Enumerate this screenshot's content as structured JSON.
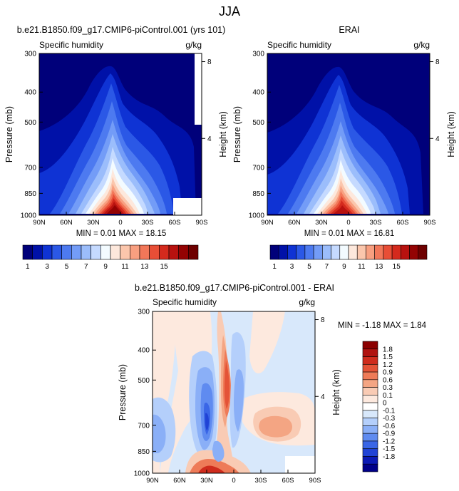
{
  "page_title": "JJA",
  "colors": {
    "blues_to_reds_18": [
      "#00007a",
      "#0011a8",
      "#0f33d4",
      "#2b58e6",
      "#4d7af0",
      "#739cf7",
      "#9bbdfb",
      "#c5daff",
      "#f3fbff",
      "#fde8dc",
      "#fbc6ac",
      "#f89f80",
      "#f27759",
      "#e84e36",
      "#d42a1d",
      "#b8120f",
      "#940303",
      "#6e0000"
    ],
    "diff_19": [
      "#000089",
      "#0b1ab5",
      "#2043d6",
      "#3a66e6",
      "#5f8bf0",
      "#8aaff7",
      "#b4cffb",
      "#d8e8fb",
      "#ffffff",
      "#fde9de",
      "#f9cbb4",
      "#f4a583",
      "#ee7b58",
      "#e45337",
      "#cf2c1d",
      "#b01310",
      "#8b0000"
    ]
  },
  "chart_data": [
    {
      "id": "model",
      "type": "contour",
      "title": "b.e21.B1850.f09_g17.CMIP6-piControl.001 (yrs 101)",
      "left_label": "Specific humidity",
      "right_label": "g/kg",
      "ylabel": "Pressure (mb)",
      "y2label": "Height (km)",
      "x_ticks": [
        "90N",
        "60N",
        "30N",
        "0",
        "30S",
        "60S",
        "90S"
      ],
      "y_ticks": [
        300,
        400,
        500,
        700,
        850,
        1000
      ],
      "y2_ticks": [
        8,
        4
      ],
      "min_max_text": "MIN =  0.01  MAX =  18.15",
      "min": 0.01,
      "max": 18.15,
      "colorbar": {
        "labels": [
          "1",
          "3",
          "5",
          "7",
          "9",
          "11",
          "13",
          "15"
        ]
      }
    },
    {
      "id": "obs",
      "type": "contour",
      "title": "ERAI",
      "left_label": "Specific humidity",
      "right_label": "g/kg",
      "ylabel": "Pressure (mb)",
      "y2label": "Height (km)",
      "x_ticks": [
        "90N",
        "60N",
        "30N",
        "0",
        "30S",
        "60S",
        "90S"
      ],
      "y_ticks": [
        300,
        400,
        500,
        700,
        850,
        1000
      ],
      "y2_ticks": [
        8,
        4
      ],
      "min_max_text": "MIN =  0.01  MAX =  16.81",
      "min": 0.01,
      "max": 16.81,
      "colorbar": {
        "labels": [
          "1",
          "3",
          "5",
          "7",
          "9",
          "11",
          "13",
          "15"
        ]
      }
    },
    {
      "id": "diff",
      "type": "contour",
      "title": "b.e21.B1850.f09_g17.CMIP6-piControl.001 - ERAI",
      "left_label": "Specific humidity",
      "right_label": "g/kg",
      "ylabel": "Pressure (mb)",
      "y2label": "Height (km)",
      "x_ticks": [
        "90N",
        "60N",
        "30N",
        "0",
        "30S",
        "60S",
        "90S"
      ],
      "y_ticks": [
        300,
        400,
        500,
        700,
        850,
        1000
      ],
      "y2_ticks": [
        8,
        4
      ],
      "min_max_text": "MIN = -1.18  MAX =  1.84",
      "min": -1.18,
      "max": 1.84,
      "colorbar": {
        "labels": [
          "1.8",
          "1.5",
          "1.2",
          "0.9",
          "0.6",
          "0.3",
          "0.1",
          "0",
          "-0.1",
          "-0.3",
          "-0.6",
          "-0.9",
          "-1.2",
          "-1.5",
          "-1.8"
        ]
      }
    }
  ]
}
